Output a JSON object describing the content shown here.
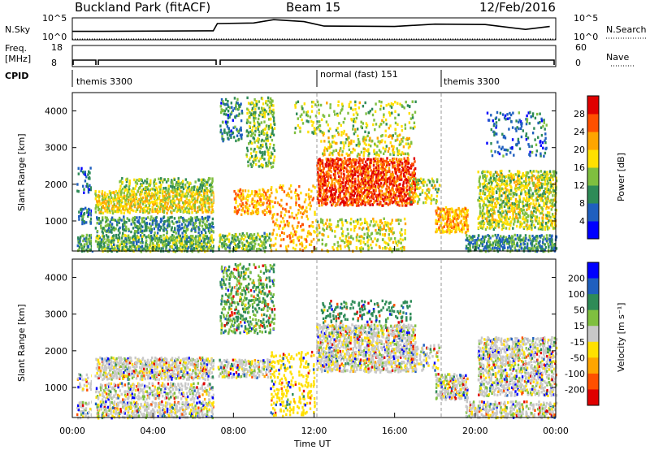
{
  "header": {
    "station": "Buckland Park (fitACF)",
    "beam": "Beam 15",
    "date": "12/Feb/2016"
  },
  "noise_panel": {
    "left_label": "N.Sky",
    "left_ticks": [
      "10^5",
      "10^0"
    ],
    "right_label": "N.Search",
    "right_ticks": [
      "10^5",
      "10^0"
    ],
    "right_line_style": "dotted"
  },
  "freq_panel": {
    "left_label": "Freq.",
    "left_unit": "[MHz]",
    "left_ticks": [
      "18",
      "8"
    ],
    "right_label": "Nave",
    "right_ticks": [
      "60",
      "0"
    ],
    "right_line_style": "dotted"
  },
  "cpid": {
    "label": "CPID",
    "segments": [
      {
        "start_h": 0.0,
        "end_h": 12.0,
        "name": "themis 3300"
      },
      {
        "start_h": 12.0,
        "end_h": 18.3,
        "name": "normal (fast) 151"
      },
      {
        "start_h": 18.3,
        "end_h": 24.0,
        "name": "themis 3300"
      }
    ]
  },
  "chart_data": [
    {
      "type": "heatmap",
      "quantity": "Power",
      "ylabel": "Slant Range [km]",
      "xlabel": "Time UT",
      "xlim_h": [
        0,
        24
      ],
      "ylim_km": [
        180,
        4500
      ],
      "yticks": [
        1000,
        2000,
        3000,
        4000
      ],
      "colorbar": {
        "label": "Power [dB]",
        "ticks": [
          "4",
          "8",
          "12",
          "16",
          "20",
          "24",
          "28"
        ],
        "range": [
          0,
          30
        ],
        "colors": [
          "#0000ff",
          "#1f5fbf",
          "#2e8b57",
          "#7fbf3f",
          "#ffe000",
          "#ffa500",
          "#ff5000",
          "#e00000"
        ]
      },
      "data_gaps_h": [
        [
          0.97,
          1.07
        ],
        [
          7.05,
          7.18
        ]
      ],
      "bands": [
        {
          "t0": 0.2,
          "t1": 1.0,
          "r0": 200,
          "r1": 650,
          "power_db": 10,
          "density": 0.9
        },
        {
          "t0": 0.2,
          "t1": 1.0,
          "r0": 950,
          "r1": 1400,
          "power_db": 8,
          "density": 0.7
        },
        {
          "t0": 0.2,
          "t1": 0.9,
          "r0": 1800,
          "r1": 2500,
          "power_db": 6,
          "density": 0.35
        },
        {
          "t0": 1.1,
          "t1": 7.0,
          "r0": 200,
          "r1": 650,
          "power_db": 12,
          "density": 0.9
        },
        {
          "t0": 1.1,
          "t1": 7.0,
          "r0": 700,
          "r1": 1150,
          "power_db": 9,
          "density": 0.7
        },
        {
          "t0": 1.1,
          "t1": 7.0,
          "r0": 1250,
          "r1": 1850,
          "power_db": 17,
          "density": 0.9
        },
        {
          "t0": 2.3,
          "t1": 7.0,
          "r0": 1850,
          "r1": 2200,
          "power_db": 13,
          "density": 0.6
        },
        {
          "t0": 7.2,
          "t1": 9.8,
          "r0": 200,
          "r1": 700,
          "power_db": 12,
          "density": 0.7
        },
        {
          "t0": 7.3,
          "t1": 8.4,
          "r0": 3200,
          "r1": 4400,
          "power_db": 8,
          "density": 0.4
        },
        {
          "t0": 8.0,
          "t1": 9.8,
          "r0": 1200,
          "r1": 1900,
          "power_db": 20,
          "density": 0.6
        },
        {
          "t0": 8.6,
          "t1": 10.0,
          "r0": 2500,
          "r1": 4400,
          "power_db": 13,
          "density": 0.5
        },
        {
          "t0": 9.8,
          "t1": 12.0,
          "r0": 200,
          "r1": 2000,
          "power_db": 20,
          "density": 0.25
        },
        {
          "t0": 11.0,
          "t1": 17.0,
          "r0": 3400,
          "r1": 4300,
          "power_db": 14,
          "density": 0.2
        },
        {
          "t0": 12.0,
          "t1": 16.5,
          "r0": 200,
          "r1": 1100,
          "power_db": 16,
          "density": 0.35
        },
        {
          "t0": 12.1,
          "t1": 17.0,
          "r0": 1450,
          "r1": 2750,
          "power_db": 25,
          "density": 0.85
        },
        {
          "t0": 12.3,
          "t1": 16.8,
          "r0": 2800,
          "r1": 3400,
          "power_db": 16,
          "density": 0.35
        },
        {
          "t0": 16.7,
          "t1": 18.2,
          "r0": 1500,
          "r1": 2200,
          "power_db": 15,
          "density": 0.45
        },
        {
          "t0": 18.0,
          "t1": 19.6,
          "r0": 700,
          "r1": 1400,
          "power_db": 20,
          "density": 0.8
        },
        {
          "t0": 19.5,
          "t1": 24.0,
          "r0": 200,
          "r1": 650,
          "power_db": 9,
          "density": 0.8
        },
        {
          "t0": 20.1,
          "t1": 24.0,
          "r0": 800,
          "r1": 2400,
          "power_db": 15,
          "density": 0.7
        },
        {
          "t0": 20.5,
          "t1": 23.5,
          "r0": 2800,
          "r1": 4000,
          "power_db": 7,
          "density": 0.2
        }
      ]
    },
    {
      "type": "heatmap",
      "quantity": "Velocity",
      "ylabel": "Slant Range [km]",
      "xlabel": "Time UT",
      "xlim_h": [
        0,
        24
      ],
      "ylim_km": [
        180,
        4500
      ],
      "yticks": [
        1000,
        2000,
        3000,
        4000
      ],
      "xticks": [
        "00:00",
        "04:00",
        "08:00",
        "12:00",
        "16:00",
        "20:00",
        "00:00"
      ],
      "colorbar": {
        "label": "Velocity [m s⁻¹]",
        "ticks": [
          "200",
          "100",
          "50",
          "15",
          "-15",
          "-50",
          "-100",
          "-200"
        ],
        "colors": [
          "#0000ff",
          "#1f5fbf",
          "#2e8b57",
          "#7fbf3f",
          "#c8c8c8",
          "#ffe000",
          "#ffa500",
          "#ff5000",
          "#e00000"
        ]
      },
      "data_gaps_h": [
        [
          0.97,
          1.07
        ],
        [
          7.05,
          7.18
        ]
      ],
      "bands": [
        {
          "t0": 0.2,
          "t1": 1.0,
          "r0": 200,
          "r1": 650,
          "velocity": 0,
          "density": 0.7
        },
        {
          "t0": 0.2,
          "t1": 1.0,
          "r0": 950,
          "r1": 1400,
          "velocity": 0,
          "density": 0.5
        },
        {
          "t0": 1.1,
          "t1": 7.0,
          "r0": 200,
          "r1": 650,
          "velocity": 0,
          "density": 0.8
        },
        {
          "t0": 1.1,
          "t1": 7.0,
          "r0": 700,
          "r1": 1150,
          "velocity": 0,
          "density": 0.6
        },
        {
          "t0": 1.1,
          "t1": 7.0,
          "r0": 1250,
          "r1": 1850,
          "velocity": 0,
          "density": 0.9
        },
        {
          "t0": 7.2,
          "t1": 9.8,
          "r0": 1300,
          "r1": 1800,
          "velocity": 0,
          "density": 0.8
        },
        {
          "t0": 7.3,
          "t1": 10.0,
          "r0": 2500,
          "r1": 4400,
          "velocity": 30,
          "density": 0.45
        },
        {
          "t0": 9.8,
          "t1": 12.0,
          "r0": 200,
          "r1": 2000,
          "velocity": -20,
          "density": 0.25
        },
        {
          "t0": 12.1,
          "t1": 17.0,
          "r0": 1450,
          "r1": 2750,
          "velocity": 0,
          "density": 0.85
        },
        {
          "t0": 12.3,
          "t1": 16.8,
          "r0": 2800,
          "r1": 3400,
          "velocity": 40,
          "density": 0.35
        },
        {
          "t0": 16.7,
          "t1": 18.2,
          "r0": 1500,
          "r1": 2200,
          "velocity": 0,
          "density": 0.4
        },
        {
          "t0": 18.0,
          "t1": 19.6,
          "r0": 700,
          "r1": 1400,
          "velocity": 0,
          "density": 0.85
        },
        {
          "t0": 19.5,
          "t1": 24.0,
          "r0": 200,
          "r1": 650,
          "velocity": 0,
          "density": 0.7
        },
        {
          "t0": 20.1,
          "t1": 24.0,
          "r0": 800,
          "r1": 2400,
          "velocity": 0,
          "density": 0.7
        }
      ]
    }
  ],
  "noise_trace": [
    {
      "t": 0.0,
      "sky": 0.35
    },
    {
      "t": 0.9,
      "sky": 0.35
    },
    {
      "t": 1.1,
      "sky": 0.35
    },
    {
      "t": 7.0,
      "sky": 0.38
    },
    {
      "t": 7.2,
      "sky": 0.75
    },
    {
      "t": 9.0,
      "sky": 0.78
    },
    {
      "t": 10.0,
      "sky": 0.95
    },
    {
      "t": 11.5,
      "sky": 0.85
    },
    {
      "t": 12.5,
      "sky": 0.62
    },
    {
      "t": 16.0,
      "sky": 0.6
    },
    {
      "t": 18.0,
      "sky": 0.72
    },
    {
      "t": 20.5,
      "sky": 0.7
    },
    {
      "t": 22.5,
      "sky": 0.45
    },
    {
      "t": 23.7,
      "sky": 0.6
    }
  ]
}
